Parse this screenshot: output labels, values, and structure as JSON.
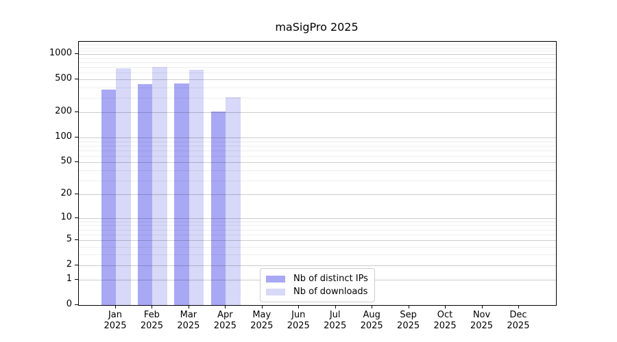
{
  "chart_data": {
    "type": "bar",
    "title": "maSigPro 2025",
    "categories": [
      {
        "month": "Jan",
        "year": "2025"
      },
      {
        "month": "Feb",
        "year": "2025"
      },
      {
        "month": "Mar",
        "year": "2025"
      },
      {
        "month": "Apr",
        "year": "2025"
      },
      {
        "month": "May",
        "year": "2025"
      },
      {
        "month": "Jun",
        "year": "2025"
      },
      {
        "month": "Jul",
        "year": "2025"
      },
      {
        "month": "Aug",
        "year": "2025"
      },
      {
        "month": "Sep",
        "year": "2025"
      },
      {
        "month": "Oct",
        "year": "2025"
      },
      {
        "month": "Nov",
        "year": "2025"
      },
      {
        "month": "Dec",
        "year": "2025"
      }
    ],
    "series": [
      {
        "name": "Nb of distinct IPs",
        "color": "#a8a8f5",
        "values": [
          380,
          440,
          450,
          205,
          null,
          null,
          null,
          null,
          null,
          null,
          null,
          null
        ]
      },
      {
        "name": "Nb of downloads",
        "color": "#d8d8f8",
        "values": [
          670,
          700,
          650,
          305,
          null,
          null,
          null,
          null,
          null,
          null,
          null,
          null
        ]
      }
    ],
    "y_axis": {
      "scale": "log1p",
      "ticks": [
        0,
        1,
        2,
        5,
        10,
        20,
        50,
        100,
        200,
        500,
        1000
      ],
      "minor_gridlines": [
        3,
        4,
        6,
        7,
        8,
        9,
        30,
        40,
        60,
        70,
        80,
        90,
        300,
        400,
        600,
        700,
        800,
        900,
        1100,
        1200,
        1300,
        1400
      ],
      "max": 1410
    },
    "x_axis": {
      "label_lines": 2
    },
    "legend": {
      "position": "lower center"
    },
    "grid": "major and minor horizontal",
    "colors": {
      "background": "#ffffff",
      "spine": "#000000",
      "text": "#000000",
      "grid_major": "rgba(0,0,0,0.20)",
      "grid_minor": "rgba(0,0,0,0.07)",
      "legend_border": "#cccccc"
    }
  }
}
